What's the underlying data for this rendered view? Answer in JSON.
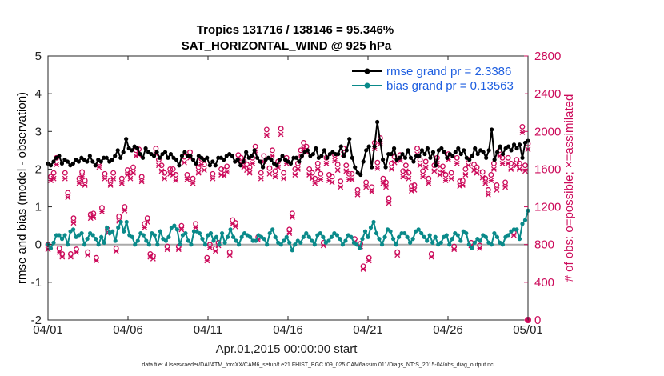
{
  "chart_data": {
    "type": "line",
    "title": "Tropics 131716 / 138146 = 95.346%",
    "subtitle": "SAT_HORIZONTAL_WIND @ 925 hPa",
    "xlabel": "Apr.01,2015 00:00:00 start",
    "ylabel": "rmse and bias (model - observation)",
    "ylabel_right": "# of obs: o=possible; ×=assimilated",
    "footer": "data file: /Users/raeder/DAI/ATM_forcXX/CAM6_setup/f.e21.FHIST_BGC.f09_025.CAM6assim.011/Diags_NTrS_2015-04/obs_diag_output.nc",
    "xlim": [
      0,
      30
    ],
    "ylim": [
      -2,
      5
    ],
    "ylim_right": [
      0,
      2800
    ],
    "x_ticks": [
      0,
      5,
      10,
      15,
      20,
      25,
      30
    ],
    "x_tick_labels": [
      "04/01",
      "04/06",
      "04/11",
      "04/16",
      "04/21",
      "04/26",
      "05/01"
    ],
    "y_ticks": [
      -2,
      -1,
      0,
      1,
      2,
      3,
      4,
      5
    ],
    "y_tick_labels": [
      "-2",
      "-1",
      "0",
      "1",
      "2",
      "3",
      "4",
      "5"
    ],
    "y_ticks_right": [
      0,
      400,
      800,
      1200,
      1600,
      2000,
      2400,
      2800
    ],
    "y_tick_labels_right": [
      "0",
      "400",
      "800",
      "1200",
      "1600",
      "2000",
      "2400",
      "2800"
    ],
    "legend": [
      "rmse grand pr = 2.3386",
      "bias grand pr = 0.13563"
    ],
    "legend_position": "top-right",
    "colors": {
      "rmse": "#000000",
      "bias": "#0a8a8a",
      "obs": "#cc0a5a",
      "zero_line": "#aaaaaa"
    },
    "series": [
      {
        "name": "rmse",
        "values": [
          2.15,
          2.1,
          2.2,
          2.3,
          2.35,
          2.15,
          2.25,
          2.2,
          2.1,
          2.15,
          2.25,
          2.2,
          2.3,
          2.25,
          2.2,
          2.35,
          2.2,
          2.1,
          2.25,
          2.2,
          2.3,
          2.3,
          2.2,
          2.25,
          2.35,
          2.5,
          2.3,
          2.45,
          2.8,
          2.55,
          2.5,
          2.6,
          2.55,
          2.4,
          2.3,
          2.55,
          2.45,
          2.4,
          2.35,
          2.45,
          2.3,
          2.4,
          2.45,
          2.3,
          2.4,
          2.3,
          2.25,
          2.1,
          2.35,
          2.45,
          2.35,
          2.35,
          2.25,
          2.15,
          2.35,
          2.3,
          2.25,
          2.3,
          2.1,
          2.2,
          2.1,
          2.3,
          2.3,
          2.25,
          2.35,
          2.4,
          2.35,
          2.2,
          2.25,
          2.1,
          2.2,
          2.45,
          2.3,
          2.35,
          2.5,
          2.3,
          2.2,
          2.05,
          2.25,
          2.3,
          2.25,
          2.15,
          2.1,
          2.25,
          2.35,
          2.25,
          2.2,
          2.15,
          2.3,
          2.3,
          2.2,
          2.35,
          2.45,
          2.5,
          2.35,
          2.4,
          2.55,
          2.3,
          2.35,
          2.5,
          2.3,
          2.4,
          2.45,
          2.4,
          2.4,
          2.6,
          2.35,
          2.5,
          2.8,
          2.3,
          2.05,
          1.9,
          1.85,
          2.2,
          2.5,
          2.6,
          2.05,
          2.6,
          3.25,
          2.75,
          2.25,
          2.05,
          2.4,
          2.4,
          2.55,
          2.25,
          2.3,
          2.4,
          2.3,
          2.5,
          2.3,
          2.2,
          2.35,
          2.35,
          2.5,
          2.4,
          2.55,
          2.3,
          2.45,
          2.1,
          2.5,
          2.55,
          2.45,
          2.3,
          2.4,
          2.35,
          2.45,
          2.55,
          2.4,
          2.5,
          2.3,
          2.25,
          2.35,
          2.55,
          2.4,
          2.5,
          2.45,
          2.3,
          2.5,
          3.05,
          2.25,
          2.45,
          2.6,
          2.4,
          2.55,
          2.6,
          2.5,
          2.65,
          2.55,
          2.65,
          2.3,
          2.7,
          2.75
        ],
        "label": "rmse grand pr = 2.3386"
      },
      {
        "name": "bias",
        "values": [
          0.0,
          -0.1,
          0.05,
          0.25,
          0.25,
          0.15,
          0.25,
          0.0,
          0.35,
          0.4,
          0.2,
          0.25,
          0.3,
          0.0,
          0.15,
          0.3,
          0.25,
          0.15,
          0.0,
          0.2,
          0.05,
          0.45,
          0.3,
          0.35,
          0.1,
          0.45,
          0.6,
          0.35,
          0.6,
          0.25,
          0.2,
          0.0,
          0.1,
          0.3,
          0.25,
          0.1,
          0.0,
          0.3,
          0.25,
          0.0,
          0.35,
          0.15,
          0.1,
          0.2,
          0.45,
          0.5,
          0.4,
          0.0,
          0.25,
          0.3,
          0.1,
          0.0,
          0.35,
          0.35,
          0.3,
          0.15,
          0.0,
          0.25,
          0.3,
          0.1,
          0.2,
          0.0,
          0.3,
          0.05,
          0.2,
          0.4,
          0.2,
          0.1,
          0.0,
          0.2,
          0.3,
          0.25,
          0.2,
          0.1,
          0.1,
          0.25,
          0.2,
          0.15,
          0.0,
          0.3,
          0.4,
          0.2,
          0.05,
          0.0,
          0.1,
          0.2,
          0.05,
          -0.15,
          0.0,
          0.1,
          0.05,
          0.2,
          0.3,
          0.2,
          0.1,
          0.0,
          0.25,
          0.3,
          0.2,
          0.05,
          0.1,
          0.2,
          0.3,
          0.25,
          0.15,
          0.0,
          0.1,
          0.25,
          0.2,
          0.05,
          0.0,
          -0.1,
          0.15,
          0.35,
          0.2,
          0.45,
          0.6,
          0.3,
          0.15,
          0.0,
          0.2,
          0.4,
          0.35,
          0.15,
          0.0,
          0.2,
          0.3,
          0.3,
          0.2,
          0.05,
          0.15,
          0.35,
          0.4,
          0.3,
          0.2,
          0.1,
          0.25,
          0.05,
          0.2,
          0.0,
          0.05,
          0.2,
          0.25,
          0.0,
          0.15,
          0.3,
          0.25,
          0.1,
          0.35,
          0.3,
          0.0,
          -0.1,
          0.05,
          0.15,
          0.1,
          0.25,
          0.2,
          0.05,
          0.0,
          0.3,
          0.2,
          0.05,
          0.0,
          0.2,
          0.25,
          0.35,
          0.4,
          0.4,
          0.15,
          0.55,
          0.65,
          0.9
        ],
        "label": "bias grand pr = 0.13563"
      },
      {
        "name": "obs possible",
        "values": [
          800,
          1520,
          1560,
          1720,
          760,
          700,
          1560,
          1350,
          700,
          1080,
          750,
          1500,
          1570,
          1480,
          720,
          1120,
          1130,
          660,
          1670,
          1190,
          1550,
          960,
          1480,
          1560,
          760,
          1100,
          1500,
          1200,
          1590,
          1560,
          1620,
          1800,
          1810,
          1520,
          1020,
          1080,
          700,
          680,
          1820,
          1700,
          1640,
          1560,
          780,
          1600,
          1600,
          1540,
          780,
          1000,
          1730,
          1540,
          1780,
          1500,
          1020,
          1620,
          1710,
          1650,
          660,
          800,
          1550,
          760,
          820,
          1600,
          1590,
          1630,
          720,
          1060,
          1030,
          1750,
          1720,
          1680,
          1650,
          1620,
          1720,
          1840,
          880,
          1560,
          1740,
          2020,
          1610,
          1800,
          1580,
          1680,
          2030,
          1560,
          1720,
          960,
          1130,
          1600,
          1660,
          1800,
          1880,
          1840,
          1600,
          1560,
          1500,
          1660,
          1550,
          820,
          1720,
          1540,
          1520,
          1750,
          1650,
          1470,
          1820,
          1640,
          1550,
          1550,
          860,
          1380,
          810,
          570,
          1460,
          660,
          1410,
          1880,
          1670,
          1930,
          1500,
          1460,
          1290,
          1660,
          1730,
          720,
          1750,
          1580,
          1640,
          1560,
          1420,
          1430,
          1820,
          1700,
          1580,
          1680,
          1500,
          700,
          1640,
          1720,
          1600,
          1630,
          1540,
          1760,
          1560,
          780,
          1720,
          1470,
          1480,
          1600,
          1700,
          820,
          1650,
          1620,
          790,
          1570,
          1500,
          1380,
          1540,
          1660,
          1430,
          1800,
          1720,
          1460,
          1720,
          1660,
          930,
          1700,
          1660,
          2050,
          1640,
          1870
        ],
        "label": "o"
      },
      {
        "name": "obs assimilated",
        "values": [
          750,
          1480,
          1500,
          1650,
          720,
          670,
          1500,
          1300,
          670,
          1030,
          720,
          1450,
          1520,
          1430,
          690,
          1080,
          1090,
          630,
          1620,
          1150,
          1500,
          920,
          1430,
          1500,
          730,
          1050,
          1450,
          1160,
          1540,
          1500,
          1560,
          1740,
          1750,
          1470,
          980,
          1040,
          670,
          650,
          1760,
          1640,
          1580,
          1500,
          750,
          1550,
          1540,
          1480,
          750,
          960,
          1670,
          1490,
          1720,
          1450,
          980,
          1560,
          1650,
          1590,
          630,
          770,
          1500,
          730,
          790,
          1540,
          1530,
          1570,
          690,
          1020,
          990,
          1690,
          1660,
          1620,
          1590,
          1560,
          1660,
          1780,
          850,
          1500,
          1680,
          1960,
          1550,
          1740,
          1520,
          1620,
          1970,
          1500,
          1660,
          920,
          1090,
          1540,
          1600,
          1740,
          1820,
          1780,
          1540,
          1500,
          1450,
          1600,
          1490,
          790,
          1660,
          1480,
          1460,
          1690,
          1590,
          1410,
          1760,
          1580,
          1490,
          1490,
          830,
          1330,
          780,
          540,
          1410,
          630,
          1360,
          1820,
          1610,
          1870,
          1450,
          1410,
          1240,
          1600,
          1670,
          690,
          1690,
          1520,
          1580,
          1500,
          1370,
          1380,
          1760,
          1640,
          1520,
          1620,
          1450,
          670,
          1580,
          1660,
          1540,
          1570,
          1480,
          1700,
          1500,
          750,
          1660,
          1420,
          1430,
          1540,
          1640,
          790,
          1590,
          1560,
          760,
          1510,
          1450,
          1330,
          1480,
          1600,
          1380,
          1740,
          1660,
          1410,
          1660,
          1600,
          900,
          1640,
          1600,
          1990,
          1580,
          1810
        ],
        "label": "×"
      }
    ]
  }
}
